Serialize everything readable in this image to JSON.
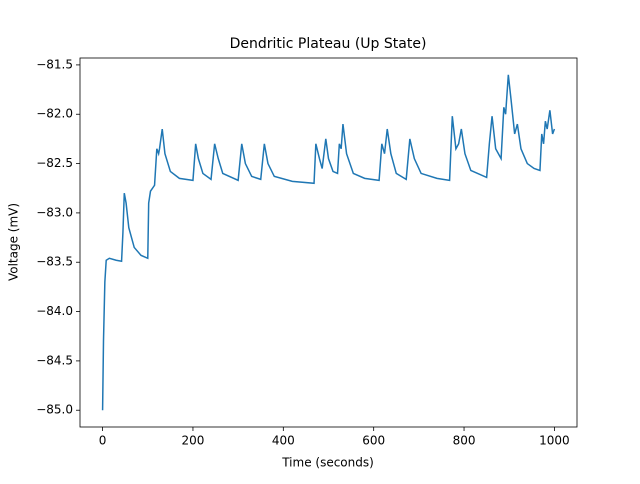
{
  "chart_data": {
    "type": "line",
    "title": "Dendritic Plateau (Up State)",
    "x_label": "Time (seconds)",
    "y_label": "Voltage (mV)",
    "x": [
      0,
      2,
      5,
      8,
      15,
      30,
      42,
      45,
      48,
      52,
      58,
      70,
      85,
      100,
      102,
      106,
      115,
      120,
      124,
      126,
      132,
      138,
      150,
      170,
      200,
      206,
      212,
      222,
      240,
      248,
      256,
      266,
      300,
      308,
      316,
      330,
      350,
      358,
      366,
      380,
      420,
      468,
      472,
      480,
      486,
      494,
      500,
      510,
      520,
      524,
      528,
      532,
      540,
      555,
      580,
      612,
      618,
      624,
      630,
      638,
      650,
      672,
      680,
      690,
      705,
      740,
      768,
      774,
      782,
      788,
      794,
      802,
      815,
      850,
      856,
      862,
      870,
      882,
      888,
      892,
      898,
      904,
      912,
      918,
      926,
      940,
      955,
      968,
      972,
      976,
      980,
      984,
      990,
      996,
      1000
    ],
    "series": [
      {
        "name": "Voltage",
        "color": "#1f77b4",
        "values": [
          -85.0,
          -84.3,
          -83.7,
          -83.48,
          -83.46,
          -83.48,
          -83.49,
          -83.2,
          -82.8,
          -82.9,
          -83.15,
          -83.35,
          -83.43,
          -83.46,
          -82.9,
          -82.78,
          -82.72,
          -82.35,
          -82.4,
          -82.35,
          -82.15,
          -82.4,
          -82.58,
          -82.65,
          -82.67,
          -82.3,
          -82.45,
          -82.6,
          -82.66,
          -82.3,
          -82.45,
          -82.6,
          -82.67,
          -82.3,
          -82.5,
          -82.63,
          -82.66,
          -82.3,
          -82.5,
          -82.63,
          -82.68,
          -82.7,
          -82.3,
          -82.45,
          -82.55,
          -82.25,
          -82.45,
          -82.58,
          -82.6,
          -82.3,
          -82.35,
          -82.1,
          -82.4,
          -82.6,
          -82.65,
          -82.67,
          -82.3,
          -82.4,
          -82.15,
          -82.4,
          -82.6,
          -82.66,
          -82.25,
          -82.45,
          -82.6,
          -82.65,
          -82.67,
          -82.02,
          -82.35,
          -82.3,
          -82.15,
          -82.4,
          -82.57,
          -82.64,
          -82.3,
          -82.02,
          -82.35,
          -82.45,
          -81.93,
          -82.0,
          -81.6,
          -81.85,
          -82.2,
          -82.1,
          -82.35,
          -82.5,
          -82.55,
          -82.57,
          -82.2,
          -82.3,
          -82.07,
          -82.15,
          -81.96,
          -82.2,
          -82.15
        ]
      }
    ],
    "xlim": [
      -50,
      1050
    ],
    "ylim": [
      -85.17,
      -81.43
    ],
    "xticks": [
      0,
      200,
      400,
      600,
      800,
      1000
    ],
    "yticks": [
      {
        "value": -85.0,
        "label": "−85.0"
      },
      {
        "value": -84.5,
        "label": "−84.5"
      },
      {
        "value": -84.0,
        "label": "−84.0"
      },
      {
        "value": -83.5,
        "label": "−83.5"
      },
      {
        "value": -83.0,
        "label": "−83.0"
      },
      {
        "value": -82.5,
        "label": "−82.5"
      },
      {
        "value": -82.0,
        "label": "−82.0"
      },
      {
        "value": -81.5,
        "label": "−81.5"
      }
    ]
  }
}
